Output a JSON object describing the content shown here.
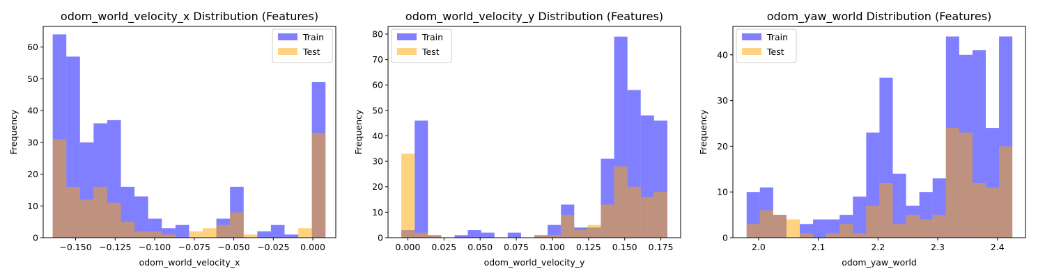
{
  "figure": {
    "type": "hist"
  },
  "chart_data": [
    {
      "type": "bar",
      "title": "odom_world_velocity_x Distribution (Features)",
      "xlabel": "odom_world_velocity_x",
      "ylabel": "Frequency",
      "xlim": [
        -0.1705,
        0.0145
      ],
      "ylim": [
        0,
        66.5
      ],
      "xticks": [
        -0.15,
        -0.125,
        -0.1,
        -0.075,
        -0.05,
        -0.025,
        0.0
      ],
      "xtick_labels": [
        "−0.150",
        "−0.125",
        "−0.100",
        "−0.075",
        "−0.050",
        "−0.025",
        "0.000"
      ],
      "yticks": [
        0,
        10,
        20,
        30,
        40,
        50,
        60
      ],
      "legend_loc": "upper right",
      "series": [
        {
          "name": "Train",
          "color": "#0000ff",
          "alpha": 0.5,
          "x_start": -0.1645,
          "x_end": 0.008,
          "values": [
            64,
            57,
            30,
            36,
            37,
            16,
            13,
            6,
            3,
            4,
            0,
            0,
            6,
            16,
            0,
            2,
            4,
            1,
            0,
            49
          ]
        },
        {
          "name": "Test",
          "color": "#ffa500",
          "alpha": 0.5,
          "x_start": -0.1645,
          "x_end": 0.008,
          "values": [
            31,
            16,
            12,
            16,
            11,
            5,
            2,
            2,
            1,
            0,
            2,
            3,
            4,
            8,
            1,
            0,
            0,
            0,
            3,
            33
          ]
        }
      ]
    },
    {
      "type": "bar",
      "title": "odom_world_velocity_y Distribution (Features)",
      "xlabel": "odom_world_velocity_y",
      "ylabel": "Frequency",
      "xlim": [
        -0.0137,
        0.1887
      ],
      "ylim": [
        0,
        83
      ],
      "xticks": [
        0.0,
        0.025,
        0.05,
        0.075,
        0.1,
        0.125,
        0.15,
        0.175
      ],
      "xtick_labels": [
        "0.000",
        "0.025",
        "0.050",
        "0.075",
        "0.100",
        "0.125",
        "0.150",
        "0.175"
      ],
      "yticks": [
        0,
        10,
        20,
        30,
        40,
        50,
        60,
        70,
        80
      ],
      "legend_loc": "upper left",
      "series": [
        {
          "name": "Train",
          "color": "#0000ff",
          "alpha": 0.5,
          "x_start": -0.0045,
          "x_end": 0.1795,
          "values": [
            3,
            46,
            1,
            0,
            1,
            3,
            2,
            0,
            2,
            0,
            1,
            5,
            13,
            4,
            4,
            31,
            79,
            58,
            48,
            46
          ]
        },
        {
          "name": "Test",
          "color": "#ffa500",
          "alpha": 0.5,
          "x_start": -0.0045,
          "x_end": 0.1795,
          "values": [
            33,
            2,
            1,
            0,
            0,
            0,
            0,
            0,
            0,
            0,
            1,
            1,
            9,
            3,
            5,
            13,
            28,
            20,
            16,
            18
          ]
        }
      ]
    },
    {
      "type": "bar",
      "title": "odom_yaw_world Distribution (Features)",
      "xlabel": "odom_yaw_world",
      "ylabel": "Frequency",
      "xlim": [
        1.957,
        2.447
      ],
      "ylim": [
        0,
        46.2
      ],
      "xticks": [
        2.0,
        2.1,
        2.2,
        2.3,
        2.4
      ],
      "xtick_labels": [
        "2.0",
        "2.1",
        "2.2",
        "2.3",
        "2.4"
      ],
      "yticks": [
        0,
        10,
        20,
        30,
        40
      ],
      "legend_loc": "upper left",
      "series": [
        {
          "name": "Train",
          "color": "#0000ff",
          "alpha": 0.5,
          "x_start": 1.98,
          "x_end": 2.425,
          "values": [
            10,
            11,
            5,
            0,
            3,
            4,
            4,
            5,
            9,
            23,
            35,
            14,
            7,
            10,
            13,
            44,
            40,
            41,
            24,
            44
          ]
        },
        {
          "name": "Test",
          "color": "#ffa500",
          "alpha": 0.5,
          "x_start": 1.98,
          "x_end": 2.425,
          "values": [
            3,
            6,
            5,
            4,
            1,
            0,
            1,
            3,
            1,
            7,
            12,
            3,
            5,
            4,
            5,
            24,
            23,
            12,
            11,
            20
          ]
        }
      ]
    }
  ]
}
